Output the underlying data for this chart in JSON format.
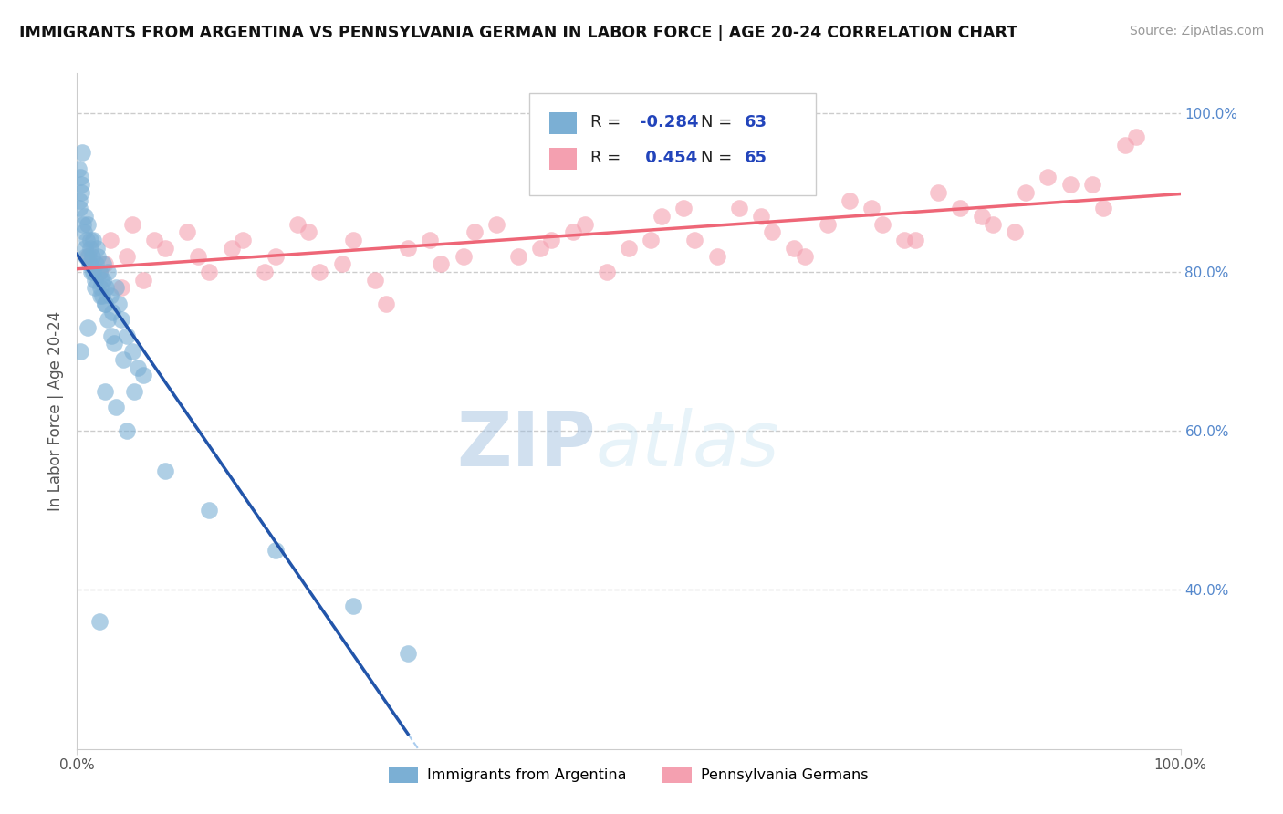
{
  "title": "IMMIGRANTS FROM ARGENTINA VS PENNSYLVANIA GERMAN IN LABOR FORCE | AGE 20-24 CORRELATION CHART",
  "source_text": "Source: ZipAtlas.com",
  "ylabel": "In Labor Force | Age 20-24",
  "xlim": [
    0,
    100
  ],
  "ylim": [
    20,
    105
  ],
  "yticks_right": [
    40,
    60,
    80,
    100
  ],
  "ytick_labels_right": [
    "40.0%",
    "60.0%",
    "80.0%",
    "100.0%"
  ],
  "legend_R1": "-0.284",
  "legend_N1": "63",
  "legend_R2": "0.454",
  "legend_N2": "65",
  "legend_label1": "Immigrants from Argentina",
  "legend_label2": "Pennsylvania Germans",
  "blue_color": "#7BAFD4",
  "pink_color": "#F4A0B0",
  "blue_line_color": "#2255AA",
  "pink_line_color": "#EE6677",
  "watermark_zip": "ZIP",
  "watermark_atlas": "atlas",
  "argentina_x": [
    0.2,
    0.3,
    0.4,
    0.5,
    0.6,
    0.7,
    0.8,
    0.9,
    1.0,
    1.1,
    1.2,
    1.3,
    1.4,
    1.5,
    1.6,
    1.7,
    1.8,
    2.0,
    2.1,
    2.2,
    2.3,
    2.4,
    2.5,
    2.6,
    2.8,
    3.0,
    3.2,
    3.5,
    3.8,
    4.0,
    4.5,
    5.0,
    5.5,
    6.0,
    0.15,
    0.25,
    0.35,
    0.55,
    0.75,
    1.05,
    1.25,
    1.45,
    1.65,
    1.85,
    2.15,
    2.35,
    2.55,
    2.75,
    3.1,
    3.4,
    4.2,
    5.2,
    0.3,
    1.0,
    2.5,
    4.5,
    8.0,
    12.0,
    18.0,
    25.0,
    30.0,
    2.0,
    3.5
  ],
  "argentina_y": [
    88,
    92,
    90,
    95,
    85,
    87,
    82,
    84,
    86,
    81,
    83,
    80,
    82,
    84,
    79,
    81,
    83,
    80,
    78,
    79,
    77,
    81,
    76,
    78,
    80,
    77,
    75,
    78,
    76,
    74,
    72,
    70,
    68,
    67,
    93,
    89,
    91,
    86,
    83,
    82,
    84,
    80,
    78,
    82,
    77,
    79,
    76,
    74,
    72,
    71,
    69,
    65,
    70,
    73,
    65,
    60,
    55,
    50,
    45,
    38,
    32,
    36,
    63
  ],
  "penn_x": [
    1.0,
    2.0,
    3.0,
    4.0,
    5.0,
    6.0,
    8.0,
    10.0,
    12.0,
    15.0,
    18.0,
    20.0,
    22.0,
    25.0,
    28.0,
    30.0,
    33.0,
    36.0,
    40.0,
    43.0,
    46.0,
    50.0,
    53.0,
    56.0,
    60.0,
    63.0,
    66.0,
    70.0,
    73.0,
    76.0,
    80.0,
    83.0,
    86.0,
    90.0,
    93.0,
    96.0,
    2.5,
    4.5,
    7.0,
    11.0,
    14.0,
    17.0,
    21.0,
    24.0,
    27.0,
    32.0,
    35.0,
    38.0,
    42.0,
    45.0,
    48.0,
    52.0,
    55.0,
    58.0,
    62.0,
    65.0,
    68.0,
    72.0,
    75.0,
    78.0,
    82.0,
    85.0,
    88.0,
    92.0,
    95.0
  ],
  "penn_y": [
    82,
    80,
    84,
    78,
    86,
    79,
    83,
    85,
    80,
    84,
    82,
    86,
    80,
    84,
    76,
    83,
    81,
    85,
    82,
    84,
    86,
    83,
    87,
    84,
    88,
    85,
    82,
    89,
    86,
    84,
    88,
    86,
    90,
    91,
    88,
    97,
    81,
    82,
    84,
    82,
    83,
    80,
    85,
    81,
    79,
    84,
    82,
    86,
    83,
    85,
    80,
    84,
    88,
    82,
    87,
    83,
    86,
    88,
    84,
    90,
    87,
    85,
    92,
    91,
    96
  ],
  "grid_yticks": [
    40,
    60,
    80,
    100
  ]
}
